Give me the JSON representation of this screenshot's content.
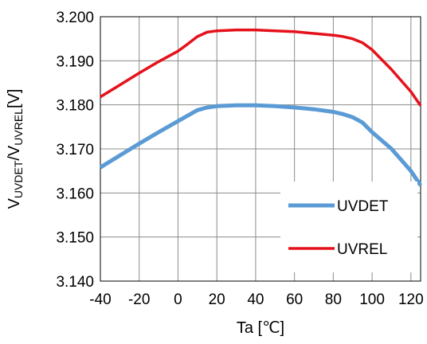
{
  "chart_data": {
    "type": "line",
    "xlabel": "Ta [℃]",
    "ylabel": {
      "main": "V",
      "sub1": "UVDET",
      "sep": "/V",
      "sub2": "UVREL",
      "unit": "[V]"
    },
    "xlim": [
      -40,
      125
    ],
    "ylim": [
      3.14,
      3.2
    ],
    "x_ticks": [
      "-40",
      "-20",
      "0",
      "20",
      "40",
      "60",
      "80",
      "100",
      "120"
    ],
    "y_ticks": [
      "3.140",
      "3.150",
      "3.160",
      "3.170",
      "3.180",
      "3.190",
      "3.200"
    ],
    "grid": true,
    "legend_position": "bottom-right",
    "series": [
      {
        "name": "UVDET",
        "color": "#5b9bd5",
        "x": [
          -40,
          -30,
          -20,
          -10,
          0,
          10,
          15,
          20,
          30,
          40,
          50,
          60,
          70,
          80,
          85,
          90,
          95,
          100,
          110,
          120,
          125
        ],
        "y": [
          3.1658,
          3.1685,
          3.1712,
          3.1738,
          3.1763,
          3.1788,
          3.1794,
          3.1797,
          3.1799,
          3.1799,
          3.1797,
          3.1794,
          3.179,
          3.1784,
          3.1779,
          3.1772,
          3.176,
          3.1738,
          3.17,
          3.165,
          3.1617
        ]
      },
      {
        "name": "UVREL",
        "color": "#e5121b",
        "x": [
          -40,
          -30,
          -20,
          -10,
          0,
          5,
          10,
          15,
          20,
          30,
          40,
          50,
          60,
          70,
          80,
          85,
          90,
          95,
          100,
          110,
          120,
          125
        ],
        "y": [
          3.1818,
          3.1845,
          3.1872,
          3.1898,
          3.1922,
          3.1938,
          3.1955,
          3.1965,
          3.1968,
          3.197,
          3.197,
          3.1968,
          3.1966,
          3.1962,
          3.1958,
          3.1955,
          3.195,
          3.1941,
          3.1925,
          3.188,
          3.183,
          3.1798
        ]
      }
    ]
  }
}
